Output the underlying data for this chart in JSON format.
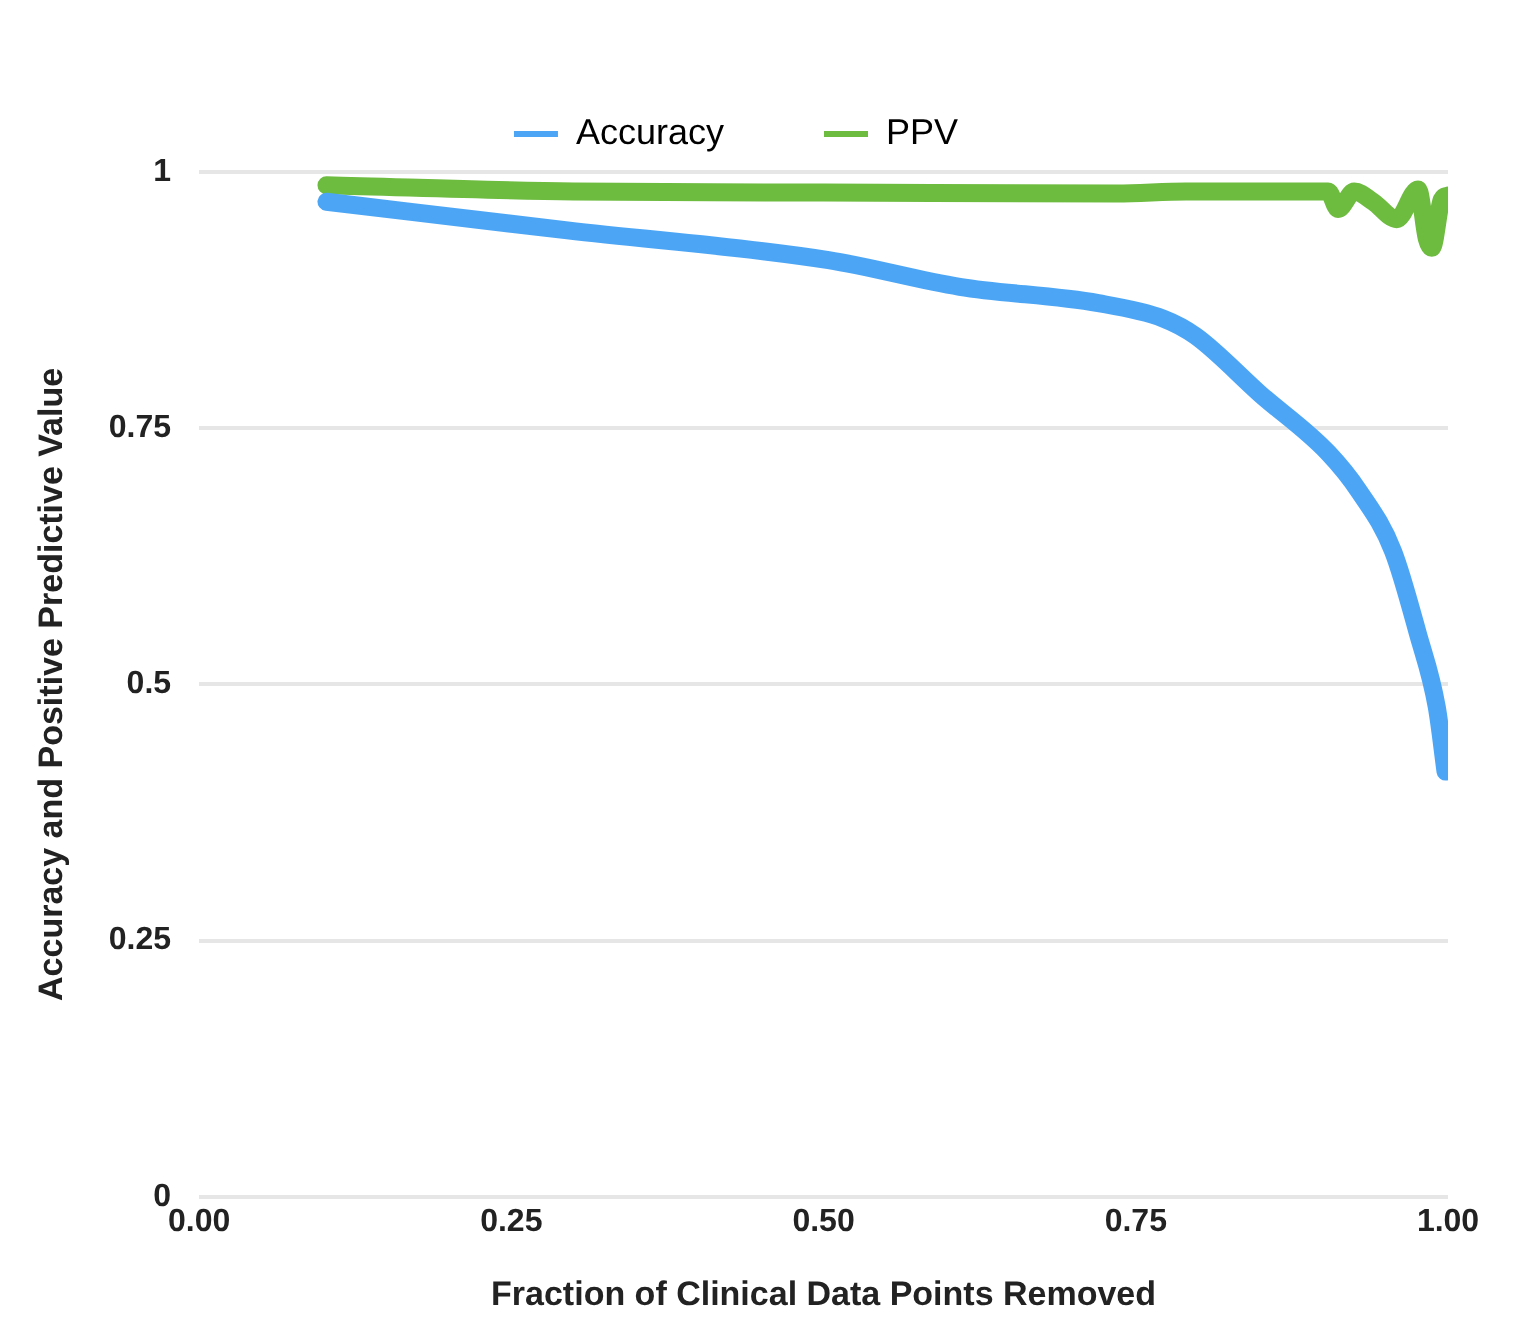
{
  "chart_data": {
    "type": "line",
    "xlabel": "Fraction of Clinical Data Points Removed",
    "ylabel": "Accuracy and Positive Predictive Value",
    "xlim": [
      0,
      1
    ],
    "ylim": [
      0,
      1
    ],
    "xticks": [
      {
        "value": 0,
        "label": "0.00"
      },
      {
        "value": 0.25,
        "label": "0.25"
      },
      {
        "value": 0.5,
        "label": "0.50"
      },
      {
        "value": 0.75,
        "label": "0.75"
      },
      {
        "value": 1,
        "label": "1.00"
      }
    ],
    "yticks": [
      0,
      0.25,
      0.5,
      0.75,
      1
    ],
    "grid": "y",
    "legend": "top",
    "marker": "none",
    "line_style": "solid",
    "series": [
      {
        "name": "Accuracy",
        "color": "#4da6f5",
        "x": [
          0.102,
          0.295,
          0.504,
          0.609,
          0.72,
          0.772,
          0.798,
          0.85,
          0.904,
          0.929,
          0.956,
          0.976,
          0.991,
          0.998
        ],
        "values": [
          0.971,
          0.943,
          0.914,
          0.888,
          0.872,
          0.857,
          0.84,
          0.783,
          0.726,
          0.688,
          0.63,
          0.549,
          0.478,
          0.415
        ]
      },
      {
        "name": "PPV",
        "color": "#6dbb3f",
        "x": [
          0.102,
          0.3,
          0.5,
          0.735,
          0.79,
          0.904,
          0.912,
          0.925,
          0.94,
          0.959,
          0.976,
          0.983,
          0.987,
          0.995,
          1.0
        ],
        "values": [
          0.987,
          0.981,
          0.98,
          0.979,
          0.981,
          0.981,
          0.964,
          0.981,
          0.971,
          0.954,
          0.983,
          0.935,
          0.926,
          0.973,
          0.977
        ]
      }
    ]
  }
}
